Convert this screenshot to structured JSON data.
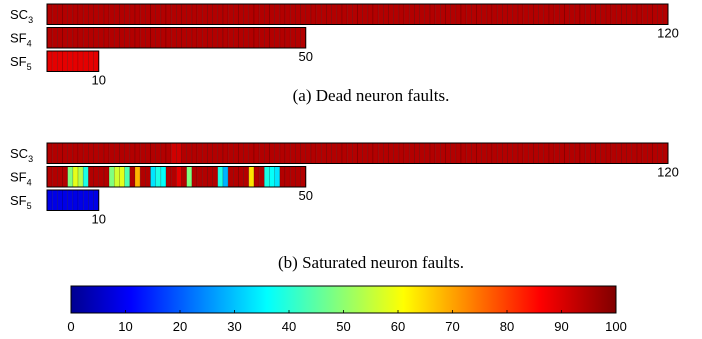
{
  "chart_data": [
    {
      "type": "heatmap",
      "caption": "(a) Dead neuron faults.",
      "rows": [
        {
          "name": "SC",
          "sub": "3",
          "count": 120,
          "end_label": "120",
          "values": [
            95,
            95,
            95,
            95,
            95,
            95,
            95,
            95,
            95,
            95,
            95,
            95,
            95,
            95,
            95,
            95,
            95,
            95,
            95,
            95,
            95,
            95,
            95,
            95,
            95,
            95,
            95,
            95,
            95,
            95,
            95,
            95,
            95,
            95,
            95,
            95,
            95,
            95,
            95,
            95,
            95,
            95,
            95,
            95,
            95,
            95,
            95,
            95,
            95,
            95,
            95,
            95,
            95,
            95,
            95,
            95,
            95,
            95,
            95,
            95,
            95,
            95,
            95,
            95,
            95,
            95,
            95,
            95,
            95,
            95,
            95,
            95,
            95,
            95,
            95,
            95,
            95,
            95,
            95,
            95,
            95,
            95,
            95,
            95,
            95,
            95,
            95,
            95,
            95,
            95,
            95,
            95,
            95,
            95,
            95,
            95,
            95,
            95,
            95,
            95,
            95,
            95,
            95,
            95,
            95,
            95,
            95,
            95,
            95,
            95,
            95,
            95,
            95,
            95,
            95,
            95,
            95,
            95,
            95,
            95
          ]
        },
        {
          "name": "SF",
          "sub": "4",
          "count": 50,
          "end_label": "50",
          "values": [
            95,
            95,
            95,
            95,
            95,
            95,
            95,
            95,
            95,
            95,
            95,
            95,
            95,
            95,
            95,
            95,
            95,
            95,
            95,
            95,
            95,
            95,
            95,
            95,
            95,
            95,
            95,
            95,
            95,
            95,
            95,
            95,
            95,
            95,
            95,
            95,
            95,
            95,
            95,
            95,
            95,
            95,
            95,
            95,
            95,
            95,
            95,
            95,
            95,
            95
          ]
        },
        {
          "name": "SF",
          "sub": "5",
          "count": 10,
          "end_label": "10",
          "values": [
            90,
            90,
            90,
            90,
            90,
            90,
            90,
            90,
            90,
            90
          ]
        }
      ]
    },
    {
      "type": "heatmap",
      "caption": "(b) Saturated neuron faults.",
      "rows": [
        {
          "name": "SC",
          "sub": "3",
          "count": 120,
          "end_label": "120",
          "values": [
            95,
            95,
            95,
            95,
            95,
            95,
            95,
            95,
            95,
            95,
            95,
            95,
            95,
            95,
            95,
            95,
            95,
            95,
            95,
            95,
            95,
            95,
            95,
            95,
            92,
            92,
            95,
            95,
            95,
            95,
            95,
            95,
            95,
            95,
            95,
            95,
            95,
            95,
            95,
            95,
            95,
            95,
            95,
            95,
            95,
            95,
            95,
            95,
            95,
            95,
            95,
            95,
            95,
            95,
            95,
            95,
            95,
            95,
            95,
            95,
            95,
            95,
            95,
            95,
            95,
            95,
            95,
            95,
            95,
            95,
            95,
            95,
            95,
            95,
            95,
            95,
            95,
            95,
            95,
            95,
            95,
            95,
            95,
            95,
            95,
            95,
            95,
            95,
            95,
            95,
            95,
            95,
            95,
            95,
            95,
            95,
            95,
            95,
            95,
            95,
            95,
            95,
            95,
            95,
            95,
            95,
            95,
            95,
            95,
            95,
            95,
            95,
            95,
            95,
            95,
            95,
            95,
            95,
            95,
            95
          ]
        },
        {
          "name": "SF",
          "sub": "4",
          "count": 50,
          "end_label": "50",
          "values": [
            95,
            95,
            95,
            95,
            50,
            60,
            55,
            40,
            95,
            95,
            95,
            95,
            50,
            58,
            60,
            45,
            95,
            70,
            95,
            95,
            35,
            40,
            38,
            95,
            95,
            90,
            95,
            50,
            95,
            95,
            95,
            95,
            95,
            40,
            30,
            95,
            95,
            95,
            95,
            65,
            95,
            95,
            40,
            38,
            35,
            95,
            95,
            95,
            95,
            95
          ]
        },
        {
          "name": "SF",
          "sub": "5",
          "count": 10,
          "end_label": "10",
          "values": [
            10,
            10,
            10,
            10,
            10,
            10,
            10,
            10,
            10,
            10
          ]
        }
      ]
    },
    {
      "type": "colorbar",
      "range": [
        0,
        100
      ],
      "ticks": [
        "0",
        "10",
        "20",
        "30",
        "40",
        "50",
        "60",
        "70",
        "80",
        "90",
        "100"
      ]
    }
  ]
}
